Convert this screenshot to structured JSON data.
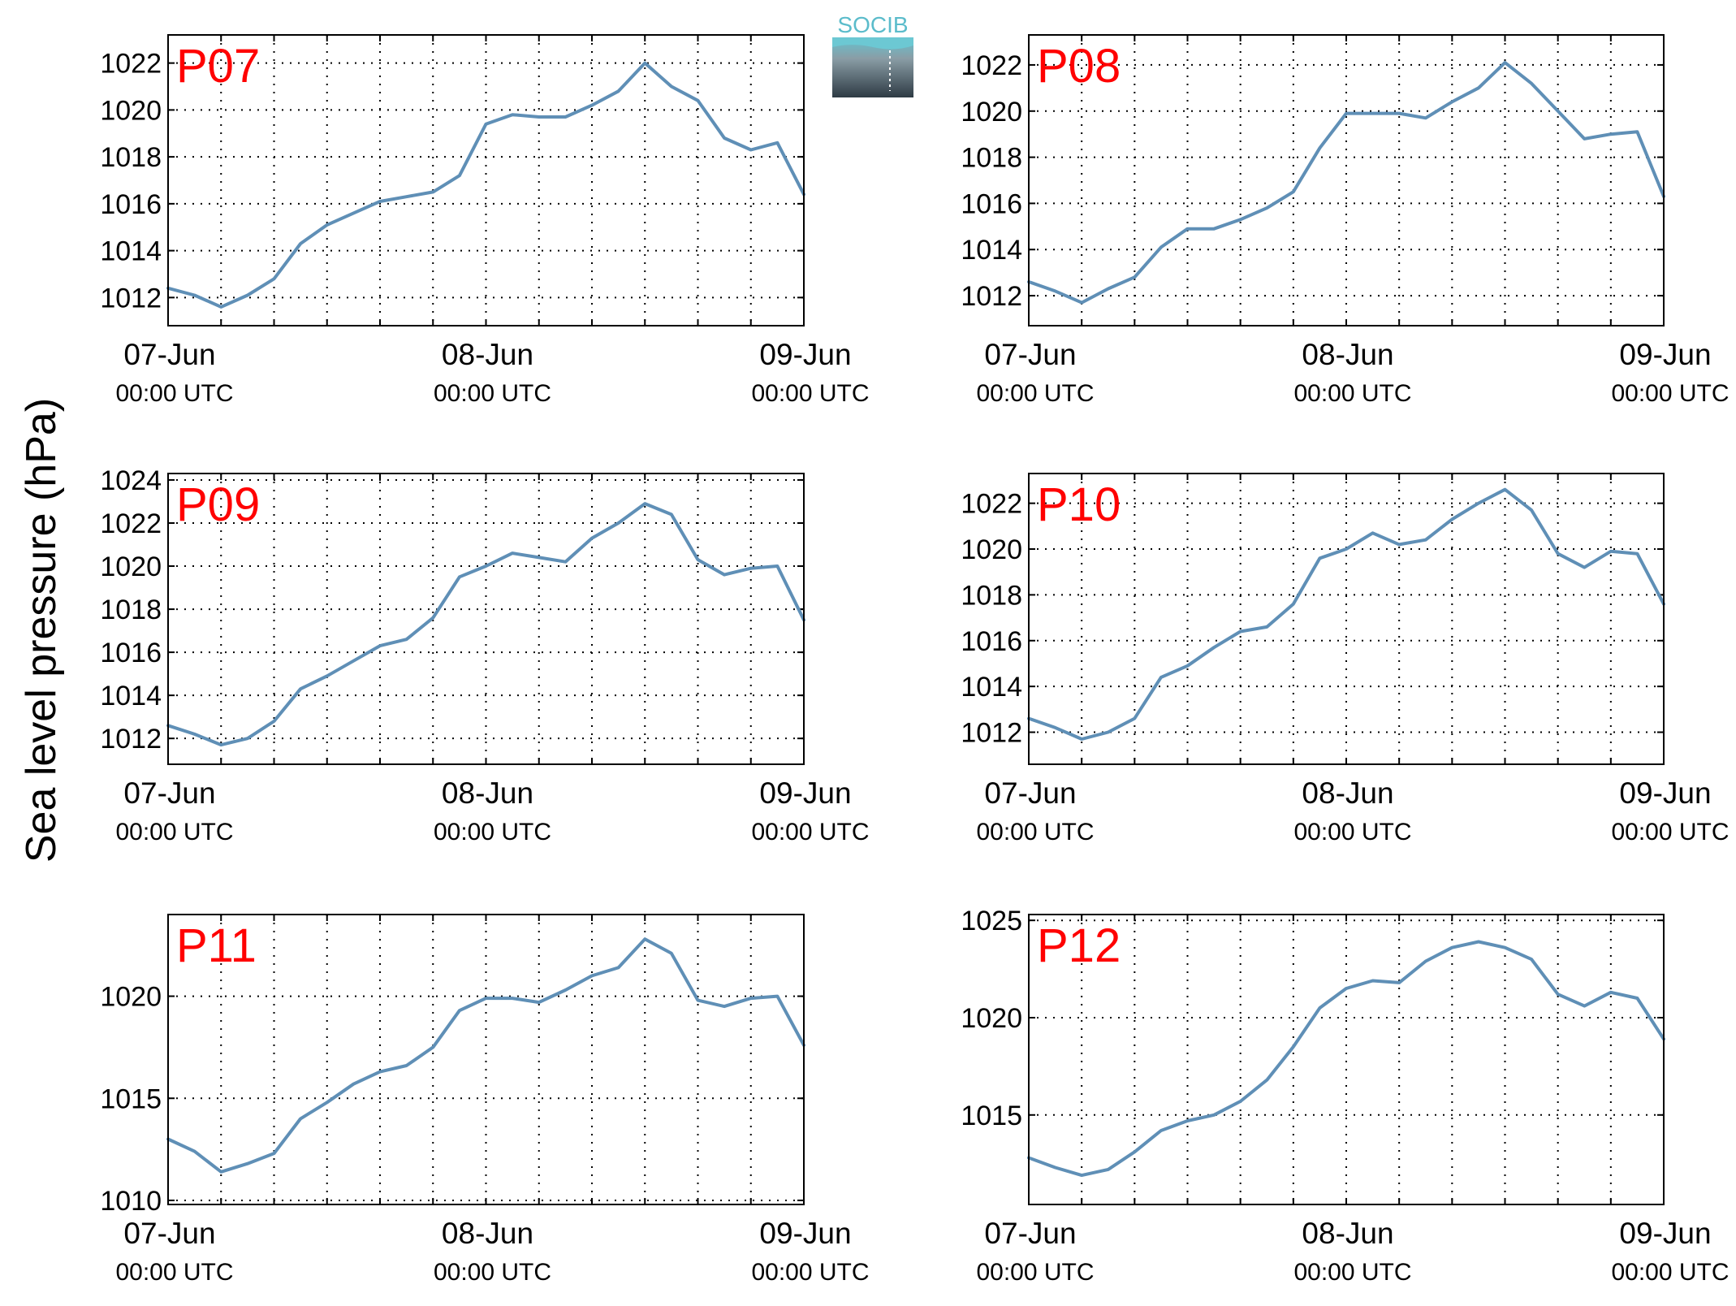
{
  "figure": {
    "ylabel": "Sea level pressure (hPa)",
    "line_color": "#5f8fb6",
    "panel_label_color": "#ff0000",
    "logo": {
      "text": "SOCIB",
      "color": "#5bbccb"
    }
  },
  "chart_data": [
    {
      "type": "line",
      "title": "P07",
      "x_range": [
        "07-Jun 00:00 UTC",
        "09-Jun 00:00 UTC"
      ],
      "xticks": [
        {
          "day": "07-Jun",
          "time": "00:00 UTC"
        },
        {
          "day": "08-Jun",
          "time": "00:00 UTC"
        },
        {
          "day": "09-Jun",
          "time": "00:00 UTC"
        }
      ],
      "yticks": [
        1012,
        1014,
        1016,
        1018,
        1020,
        1022
      ],
      "ylim": [
        1010.8,
        1023.2
      ],
      "hours": [
        0,
        2,
        4,
        6,
        8,
        10,
        12,
        14,
        16,
        18,
        20,
        22,
        24,
        26,
        28,
        30,
        32,
        34,
        36,
        38,
        40,
        42,
        44,
        46,
        48
      ],
      "values": [
        1012.4,
        1012.1,
        1011.6,
        1012.1,
        1012.8,
        1014.3,
        1015.1,
        1015.6,
        1016.1,
        1016.3,
        1016.5,
        1017.2,
        1019.4,
        1019.8,
        1019.7,
        1019.7,
        1020.2,
        1020.8,
        1022.0,
        1021.0,
        1020.4,
        1018.8,
        1018.3,
        1018.6,
        1016.4
      ],
      "grid": true
    },
    {
      "type": "line",
      "title": "P08",
      "x_range": [
        "07-Jun 00:00 UTC",
        "09-Jun 00:00 UTC"
      ],
      "xticks": [
        {
          "day": "07-Jun",
          "time": "00:00 UTC"
        },
        {
          "day": "08-Jun",
          "time": "00:00 UTC"
        },
        {
          "day": "09-Jun",
          "time": "00:00 UTC"
        }
      ],
      "yticks": [
        1012,
        1014,
        1016,
        1018,
        1020,
        1022
      ],
      "ylim": [
        1010.7,
        1023.3
      ],
      "hours": [
        0,
        2,
        4,
        6,
        8,
        10,
        12,
        14,
        16,
        18,
        20,
        22,
        24,
        26,
        28,
        30,
        32,
        34,
        36,
        38,
        40,
        42,
        44,
        46,
        48
      ],
      "values": [
        1012.6,
        1012.2,
        1011.7,
        1012.3,
        1012.8,
        1014.1,
        1014.9,
        1014.9,
        1015.3,
        1015.8,
        1016.5,
        1018.4,
        1019.9,
        1019.9,
        1019.9,
        1019.7,
        1020.4,
        1021.0,
        1022.1,
        1021.2,
        1020.0,
        1018.8,
        1019.0,
        1019.1,
        1016.3
      ],
      "grid": true
    },
    {
      "type": "line",
      "title": "P09",
      "x_range": [
        "07-Jun 00:00 UTC",
        "09-Jun 00:00 UTC"
      ],
      "xticks": [
        {
          "day": "07-Jun",
          "time": "00:00 UTC"
        },
        {
          "day": "08-Jun",
          "time": "00:00 UTC"
        },
        {
          "day": "09-Jun",
          "time": "00:00 UTC"
        }
      ],
      "yticks": [
        1012,
        1014,
        1016,
        1018,
        1020,
        1022,
        1024
      ],
      "ylim": [
        1010.8,
        1024.3
      ],
      "hours": [
        0,
        2,
        4,
        6,
        8,
        10,
        12,
        14,
        16,
        18,
        20,
        22,
        24,
        26,
        28,
        30,
        32,
        34,
        36,
        38,
        40,
        42,
        44,
        46,
        48
      ],
      "values": [
        1012.6,
        1012.2,
        1011.7,
        1012.0,
        1012.8,
        1014.3,
        1014.9,
        1015.6,
        1016.3,
        1016.6,
        1017.6,
        1019.5,
        1020.0,
        1020.6,
        1020.4,
        1020.2,
        1021.3,
        1022.0,
        1022.9,
        1022.4,
        1020.3,
        1019.6,
        1019.9,
        1020.0,
        1017.5
      ],
      "grid": true
    },
    {
      "type": "line",
      "title": "P10",
      "x_range": [
        "07-Jun 00:00 UTC",
        "09-Jun 00:00 UTC"
      ],
      "xticks": [
        {
          "day": "07-Jun",
          "time": "00:00 UTC"
        },
        {
          "day": "08-Jun",
          "time": "00:00 UTC"
        },
        {
          "day": "09-Jun",
          "time": "00:00 UTC"
        }
      ],
      "yticks": [
        1012,
        1014,
        1016,
        1018,
        1020,
        1022
      ],
      "ylim": [
        1010.6,
        1023.3
      ],
      "hours": [
        0,
        2,
        4,
        6,
        8,
        10,
        12,
        14,
        16,
        18,
        20,
        22,
        24,
        26,
        28,
        30,
        32,
        34,
        36,
        38,
        40,
        42,
        44,
        46,
        48
      ],
      "values": [
        1012.6,
        1012.2,
        1011.7,
        1012.0,
        1012.6,
        1014.4,
        1014.9,
        1015.7,
        1016.4,
        1016.6,
        1017.6,
        1019.6,
        1020.0,
        1020.7,
        1020.2,
        1020.4,
        1021.3,
        1022.0,
        1022.6,
        1021.7,
        1019.8,
        1019.2,
        1019.9,
        1019.8,
        1017.6
      ],
      "grid": true
    },
    {
      "type": "line",
      "title": "P11",
      "x_range": [
        "07-Jun 00:00 UTC",
        "09-Jun 00:00 UTC"
      ],
      "xticks": [
        {
          "day": "07-Jun",
          "time": "00:00 UTC"
        },
        {
          "day": "08-Jun",
          "time": "00:00 UTC"
        },
        {
          "day": "09-Jun",
          "time": "00:00 UTC"
        }
      ],
      "yticks": [
        1010,
        1015,
        1020
      ],
      "ylim": [
        1009.8,
        1024.0
      ],
      "hours": [
        0,
        2,
        4,
        6,
        8,
        10,
        12,
        14,
        16,
        18,
        20,
        22,
        24,
        26,
        28,
        30,
        32,
        34,
        36,
        38,
        40,
        42,
        44,
        46,
        48
      ],
      "values": [
        1013.0,
        1012.4,
        1011.4,
        1011.8,
        1012.3,
        1014.0,
        1014.8,
        1015.7,
        1016.3,
        1016.6,
        1017.5,
        1019.3,
        1019.9,
        1019.9,
        1019.7,
        1020.3,
        1021.0,
        1021.4,
        1022.8,
        1022.1,
        1019.8,
        1019.5,
        1019.9,
        1020.0,
        1017.6
      ],
      "grid": true
    },
    {
      "type": "line",
      "title": "P12",
      "x_range": [
        "07-Jun 00:00 UTC",
        "09-Jun 00:00 UTC"
      ],
      "xticks": [
        {
          "day": "07-Jun",
          "time": "00:00 UTC"
        },
        {
          "day": "08-Jun",
          "time": "00:00 UTC"
        },
        {
          "day": "09-Jun",
          "time": "00:00 UTC"
        }
      ],
      "yticks": [
        1015,
        1020,
        1025
      ],
      "ylim": [
        1010.4,
        1025.3
      ],
      "hours": [
        0,
        2,
        4,
        6,
        8,
        10,
        12,
        14,
        16,
        18,
        20,
        22,
        24,
        26,
        28,
        30,
        32,
        34,
        36,
        38,
        40,
        42,
        44,
        46,
        48
      ],
      "values": [
        1012.8,
        1012.3,
        1011.9,
        1012.2,
        1013.1,
        1014.2,
        1014.7,
        1015.0,
        1015.7,
        1016.8,
        1018.5,
        1020.5,
        1021.5,
        1021.9,
        1021.8,
        1022.9,
        1023.6,
        1023.9,
        1023.6,
        1023.0,
        1021.2,
        1020.6,
        1021.3,
        1021.0,
        1018.9
      ],
      "grid": true
    }
  ]
}
